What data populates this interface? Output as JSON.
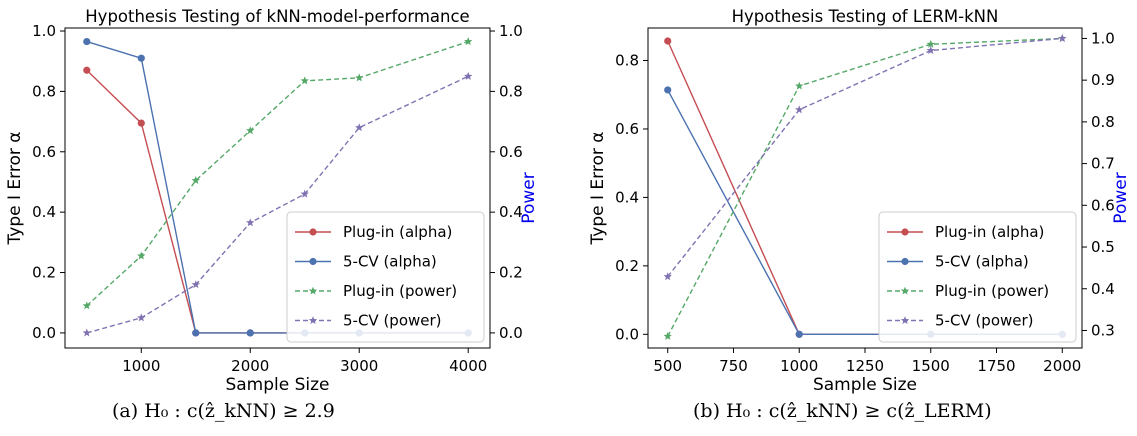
{
  "chart_data": [
    {
      "type": "line",
      "title": "Hypothesis Testing of kNN-model-performance",
      "xlabel": "Sample Size",
      "ylabel": "Type I Error α",
      "y2label": "Power",
      "xlim": [
        300,
        4200
      ],
      "ylim": [
        -0.05,
        1.01
      ],
      "y2lim": [
        -0.05,
        1.01
      ],
      "xticks": [
        1000,
        2000,
        3000,
        4000
      ],
      "yticks": [
        0.0,
        0.2,
        0.4,
        0.6,
        0.8,
        1.0
      ],
      "y2ticks": [
        0.0,
        0.2,
        0.4,
        0.6,
        0.8,
        1.0
      ],
      "grid": false,
      "legend": "bottom-right",
      "series": [
        {
          "name": "Plug-in (alpha)",
          "axis": "left",
          "color": "#c44e52",
          "style": "solid",
          "marker": "circle",
          "x": [
            500,
            1000,
            1500,
            2000,
            2500,
            3000,
            4000
          ],
          "y": [
            0.87,
            0.695,
            0.0,
            0.0,
            0.0,
            0.0,
            0.0
          ]
        },
        {
          "name": "5-CV (alpha)",
          "axis": "left",
          "color": "#4c72b0",
          "style": "solid",
          "marker": "circle",
          "x": [
            500,
            1000,
            1500,
            2000,
            2500,
            3000,
            4000
          ],
          "y": [
            0.965,
            0.91,
            0.0,
            0.0,
            0.0,
            0.0,
            0.0
          ]
        },
        {
          "name": "Plug-in (power)",
          "axis": "right",
          "color": "#55a868",
          "style": "dashed",
          "marker": "star",
          "x": [
            500,
            1000,
            1500,
            2000,
            2500,
            3000,
            4000
          ],
          "y": [
            0.09,
            0.255,
            0.505,
            0.67,
            0.835,
            0.845,
            0.965
          ]
        },
        {
          "name": "5-CV (power)",
          "axis": "right",
          "color": "#8172b2",
          "style": "dashed",
          "marker": "star",
          "x": [
            500,
            1000,
            1500,
            2000,
            2500,
            3000,
            4000
          ],
          "y": [
            0.0,
            0.05,
            0.16,
            0.365,
            0.46,
            0.68,
            0.85
          ]
        }
      ],
      "caption": "(a) H₀ : c(ẑ_kNN) ≥ 2.9"
    },
    {
      "type": "line",
      "title": "Hypothesis Testing of LERM-kNN",
      "xlabel": "Sample Size",
      "ylabel": "Type I Error α",
      "y2label": "Power",
      "xlim": [
        425,
        2075
      ],
      "ylim": [
        -0.04,
        0.895
      ],
      "y2lim": [
        0.258,
        1.025
      ],
      "xticks": [
        500,
        750,
        1000,
        1250,
        1500,
        1750,
        2000
      ],
      "yticks": [
        0.0,
        0.2,
        0.4,
        0.6,
        0.8
      ],
      "y2ticks": [
        0.3,
        0.4,
        0.5,
        0.6,
        0.7,
        0.8,
        0.9,
        1.0
      ],
      "grid": false,
      "legend": "bottom-right",
      "series": [
        {
          "name": "Plug-in (alpha)",
          "axis": "left",
          "color": "#c44e52",
          "style": "solid",
          "marker": "circle",
          "x": [
            500,
            1000,
            1500,
            2000
          ],
          "y": [
            0.857,
            0.0,
            0.0,
            0.0
          ]
        },
        {
          "name": "5-CV (alpha)",
          "axis": "left",
          "color": "#4c72b0",
          "style": "solid",
          "marker": "circle",
          "x": [
            500,
            1000,
            1500,
            2000
          ],
          "y": [
            0.714,
            0.0,
            0.0,
            0.0
          ]
        },
        {
          "name": "Plug-in (power)",
          "axis": "right",
          "color": "#55a868",
          "style": "dashed",
          "marker": "star",
          "x": [
            500,
            1000,
            1500,
            2000
          ],
          "y": [
            0.286,
            0.886,
            0.986,
            1.0
          ]
        },
        {
          "name": "5-CV (power)",
          "axis": "right",
          "color": "#8172b2",
          "style": "dashed",
          "marker": "star",
          "x": [
            500,
            1000,
            1500,
            2000
          ],
          "y": [
            0.429,
            0.829,
            0.971,
            1.0
          ]
        }
      ],
      "caption": "(b) H₀ : c(ẑ_kNN) ≥ c(ẑ_LERM)"
    }
  ]
}
